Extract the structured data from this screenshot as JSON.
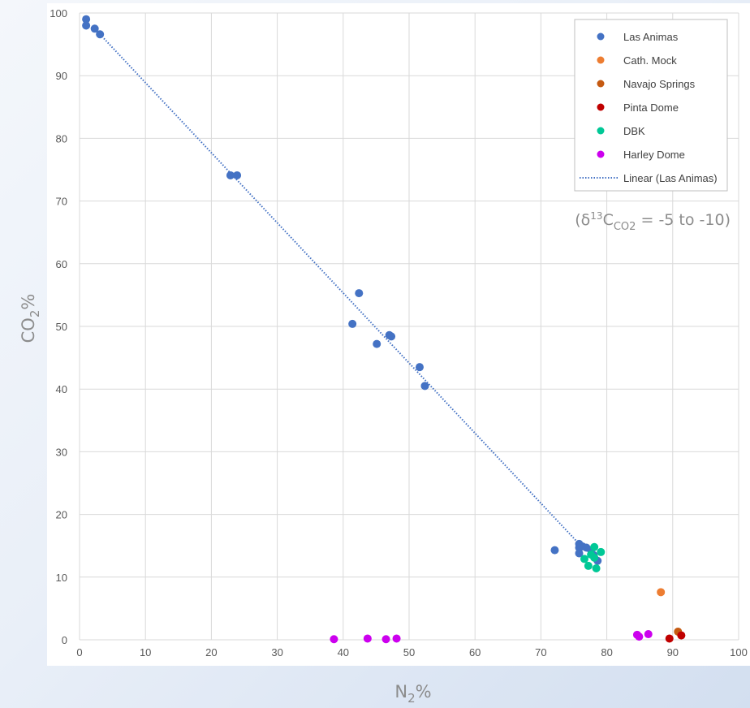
{
  "chart_data": {
    "type": "scatter",
    "xlabel": "N2%",
    "ylabel": "CO2%",
    "xlim": [
      0,
      100
    ],
    "ylim": [
      0,
      100
    ],
    "x_ticks": [
      "0",
      "10",
      "20",
      "30",
      "40",
      "50",
      "60",
      "70",
      "80",
      "90",
      "100"
    ],
    "y_ticks": [
      "0",
      "10",
      "20",
      "30",
      "40",
      "50",
      "60",
      "70",
      "80",
      "90",
      "100"
    ],
    "grid": true,
    "legend_position": "top-right",
    "annotation": "(δ13CCO2 = -5 to -10)",
    "series": [
      {
        "name": "Las Animas",
        "color": "#4472c4",
        "points": [
          [
            1.0,
            99.0
          ],
          [
            1.0,
            98.0
          ],
          [
            2.3,
            97.5
          ],
          [
            3.1,
            96.6
          ],
          [
            22.9,
            74.1
          ],
          [
            23.9,
            74.1
          ],
          [
            41.4,
            50.4
          ],
          [
            42.4,
            55.3
          ],
          [
            45.1,
            47.2
          ],
          [
            47.0,
            48.6
          ],
          [
            47.3,
            48.4
          ],
          [
            51.6,
            43.5
          ],
          [
            52.4,
            40.5
          ],
          [
            72.1,
            14.3
          ],
          [
            75.8,
            15.3
          ],
          [
            75.8,
            14.7
          ],
          [
            75.8,
            13.8
          ],
          [
            76.3,
            14.9
          ],
          [
            76.9,
            14.7
          ],
          [
            77.6,
            14.3
          ],
          [
            78.0,
            13.5
          ],
          [
            78.6,
            12.6
          ]
        ]
      },
      {
        "name": "Cath. Mock",
        "color": "#ed7d31",
        "points": [
          [
            88.2,
            7.6
          ]
        ]
      },
      {
        "name": "Navajo Springs",
        "color": "#c55a11",
        "points": [
          [
            90.8,
            1.3
          ]
        ]
      },
      {
        "name": "Pinta Dome",
        "color": "#c00000",
        "points": [
          [
            89.5,
            0.2
          ],
          [
            91.3,
            0.7
          ]
        ]
      },
      {
        "name": "DBK",
        "color": "#00c896",
        "points": [
          [
            76.6,
            12.9
          ],
          [
            77.2,
            11.8
          ],
          [
            77.6,
            13.6
          ],
          [
            78.1,
            14.8
          ],
          [
            78.1,
            13.1
          ],
          [
            78.4,
            11.4
          ],
          [
            79.1,
            14.0
          ]
        ]
      },
      {
        "name": "Harley Dome",
        "color": "#cc00ee",
        "points": [
          [
            38.6,
            0.1
          ],
          [
            43.7,
            0.2
          ],
          [
            46.5,
            0.1
          ],
          [
            48.1,
            0.2
          ],
          [
            84.6,
            0.8
          ],
          [
            84.9,
            0.5
          ],
          [
            86.3,
            0.9
          ]
        ]
      }
    ],
    "trendline": {
      "name": "Linear (Las Animas)",
      "color": "#4472c4",
      "from": [
        3.1,
        96.6
      ],
      "to": [
        75.8,
        15.3
      ]
    }
  }
}
